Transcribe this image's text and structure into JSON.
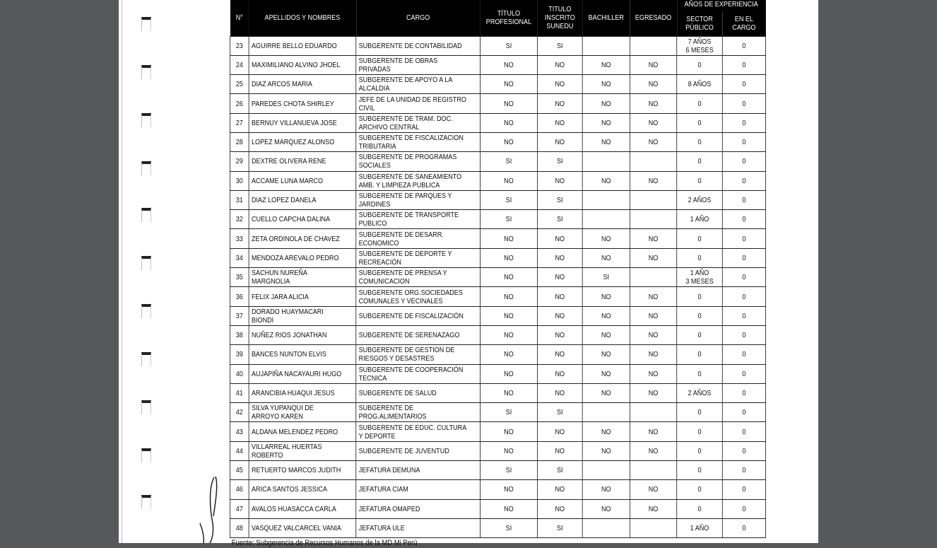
{
  "table": {
    "headers": {
      "n": "N°",
      "name": "APELLIDOS Y NOMBRES",
      "cargo": "CARGO",
      "titulo": "TÍTULO\nPROFESIONAL",
      "inscrito": "TITULO\nINSCRITO\nSUNEDU",
      "bachiller": "BACHILLER",
      "egresado": "EGRESADO",
      "experiencia": "AÑOS DE EXPERIENCIA",
      "sector": "SECTOR\nPÚBLICO",
      "encargo": "EN EL\nCARGO"
    },
    "rows": [
      [
        "23",
        "AGUIRRE BELLO EDUARDO",
        "SUBGERENTE DE CONTABILIDAD",
        "SI",
        "SI",
        "",
        "",
        "7 AÑOS\n6 MESES",
        "0"
      ],
      [
        "24",
        "MAXIMILIANO ALVINO JHOEL",
        "SUBGERENTE DE OBRAS\nPRIVADAS",
        "NO",
        "NO",
        "NO",
        "NO",
        "0",
        "0"
      ],
      [
        "25",
        "DIAZ ARCOS MARIA",
        "SUBGERENTE DE APOYO A LA\nALCALDIA",
        "NO",
        "NO",
        "NO",
        "NO",
        "8 AÑOS",
        "0"
      ],
      [
        "26",
        "PAREDES CHOTA SHIRLEY",
        "JEFE DE LA UNIDAD DE REGISTRO\nCIVIL",
        "NO",
        "NO",
        "NO",
        "NO",
        "0",
        "0"
      ],
      [
        "27",
        "BERNUY VILLANUEVA JOSE",
        "SUBGERENTE DE TRAM. DOC.\nARCHIVO CENTRAL",
        "NO",
        "NO",
        "NO",
        "NO",
        "0",
        "0"
      ],
      [
        "28",
        "LOPEZ MARQUEZ ALONSO",
        "SUBGERENTE DE FISCALIZACION\nTRIBUTARIA",
        "NO",
        "NO",
        "NO",
        "NO",
        "0",
        "0"
      ],
      [
        "29",
        "DEXTRE OLIVERA RENE",
        "SUBGERENTE DE PROGRAMAS\nSOCIALES",
        "SI",
        "SI",
        "",
        "",
        "0",
        "0"
      ],
      [
        "30",
        "ACCAME LUNA MARCO",
        "SUBGERENTE DE SANEAMIENTO\nAMB. Y LIMPIEZA PUBLICA",
        "NO",
        "NO",
        "NO",
        "NO",
        "0",
        "0"
      ],
      [
        "31",
        "DIAZ LOPEZ DANELA",
        "SUBGERENTE DE PARQUES Y\nJARDINES",
        "SI",
        "SI",
        "",
        "",
        "2 AÑOS",
        "0"
      ],
      [
        "32",
        "CUELLO CAPCHA DALINA",
        "SUBGERENTE DE TRANSPORTE\nPUBLICO",
        "SI",
        "SI",
        "",
        "",
        "1 AÑO",
        "0"
      ],
      [
        "33",
        "ZETA ORDINOLA DE CHAVEZ",
        "SUBGERENTE DE DESARR.\nECONOMICO",
        "NO",
        "NO",
        "NO",
        "NO",
        "0",
        "0"
      ],
      [
        "34",
        "MENDOZA AREVALO PEDRO",
        "SUBGERENTE DE DEPORTE Y\nRECREACIÓN",
        "NO",
        "NO",
        "NO",
        "NO",
        "0",
        "0"
      ],
      [
        "35",
        "SACHUN NUREÑA\nMARGNOLIA",
        "SUBGERENTE DE PRENSA Y\nCOMUNICACION",
        "NO",
        "NO",
        "SI",
        "",
        "1 AÑO\n3 MESES",
        "0"
      ],
      [
        "36",
        "FELIX JARA ALICIA",
        "SUBGERENTE ORG.SOCIEDADES\nCOMUNALES Y VECINALES",
        "NO",
        "NO",
        "NO",
        "NO",
        "0",
        "0"
      ],
      [
        "37",
        "DORADO HUAYMACARI\nBIONDI",
        "SUBGERENTE DE FISCALIZACIÓN",
        "NO",
        "NO",
        "NO",
        "NO",
        "0",
        "0"
      ],
      [
        "38",
        "NUÑEZ RIOS JONATHAN",
        "SUBGERENTE DE SERENAZAGO",
        "NO",
        "NO",
        "NO",
        "NO",
        "0",
        "0"
      ],
      [
        "39",
        "BANCES NUNTON ELVIS",
        "SUBGERENTE DE GESTION DE\nRIESGOS Y DESASTRES",
        "NO",
        "NO",
        "NO",
        "NO",
        "0",
        "0"
      ],
      [
        "40",
        "AUJAPIÑA NACAYAURI HUGO",
        "SUBGERENTE DE COOPERACIÓN\nTECNICA",
        "NO",
        "NO",
        "NO",
        "NO",
        "0",
        "0"
      ],
      [
        "41",
        "ARANCIBIA HUAQUI JESUS",
        "SUBGERENTE DE SALUD",
        "NO",
        "NO",
        "NO",
        "NO",
        "2 AÑOS",
        "0"
      ],
      [
        "42",
        "SILVA YUPANQUI DE\nARROYO KAREN",
        "SUBGERENTE DE\nPROG.ALIMENTARIOS",
        "SI",
        "SI",
        "",
        "",
        "0",
        "0"
      ],
      [
        "43",
        "ALDANA MELENDEZ PEDRO",
        "SUBGERENTE DE EDUC. CULTURA\nY DEPORTE",
        "NO",
        "NO",
        "NO",
        "NO",
        "0",
        "0"
      ],
      [
        "44",
        "VILLARREAL HUERTAS\nROBERTO",
        "SUBGERENTE DE JUVENTUD",
        "NO",
        "NO",
        "NO",
        "NO",
        "0",
        "0"
      ],
      [
        "45",
        "RETUERTO MARCOS JUDITH",
        "JEFATURA DEMUNA",
        "SI",
        "SI",
        "",
        "",
        "0",
        "0"
      ],
      [
        "46",
        "ARICA SANTOS JESSICA",
        "JEFATURA CIAM",
        "NO",
        "NO",
        "NO",
        "NO",
        "0",
        "0"
      ],
      [
        "47",
        "AVALOS HUASACCA CARLA",
        "JEFATURA OMAPED",
        "NO",
        "NO",
        "NO",
        "NO",
        "0",
        "0"
      ],
      [
        "48",
        "VASQUEZ VALCARCEL VANIA",
        "JEFATURA ULE",
        "SI",
        "SI",
        "",
        "",
        "1 AÑO",
        "0"
      ]
    ]
  },
  "footer": "Fuente: Subgerencia de Recursos Humanos de la MD Mi Perú"
}
